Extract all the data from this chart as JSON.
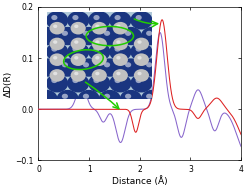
{
  "title": "",
  "xlabel": "Distance (Å)",
  "ylabel": "ΔD(R)",
  "xlim": [
    0,
    4
  ],
  "ylim": [
    -0.1,
    0.2
  ],
  "xticks": [
    0,
    1,
    2,
    3,
    4
  ],
  "yticks": [
    -0.1,
    0.0,
    0.1,
    0.2
  ],
  "figsize": [
    2.47,
    1.89
  ],
  "dpi": 100,
  "bg_color": "#ffffff",
  "plot_bg": "#ffffff",
  "red_color": "#dd2222",
  "blue_color": "#8866cc",
  "green_color": "#22cc00"
}
